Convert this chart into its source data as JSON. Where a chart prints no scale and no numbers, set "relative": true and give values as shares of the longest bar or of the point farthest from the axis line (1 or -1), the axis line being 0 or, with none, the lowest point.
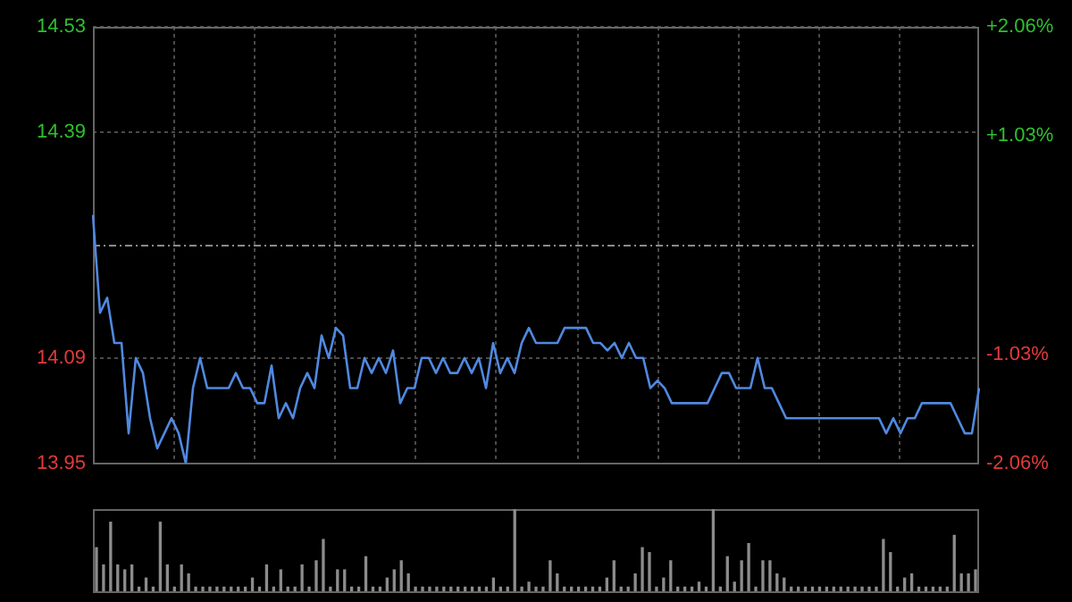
{
  "chart_data": [
    {
      "type": "line",
      "categories": [
        null,
        null,
        null,
        null,
        null,
        null,
        null,
        null,
        null,
        null,
        null,
        null,
        null,
        null,
        null,
        null,
        null,
        null,
        null,
        null,
        null,
        null,
        null,
        null,
        null,
        null,
        null,
        null,
        null,
        null,
        null,
        null,
        null,
        null,
        null,
        null,
        null,
        null,
        null,
        null,
        null,
        null,
        null,
        null,
        null,
        null,
        null,
        null,
        null,
        null,
        null,
        null,
        null,
        null,
        null,
        null,
        null,
        null,
        null,
        null,
        null,
        null,
        null,
        null,
        null,
        null,
        null,
        null,
        null,
        null,
        null,
        null,
        null,
        null,
        null,
        null,
        null,
        null,
        null,
        null,
        null,
        null,
        null,
        null,
        null,
        null,
        null,
        null,
        null,
        null,
        null,
        null,
        null,
        null,
        null,
        null,
        null,
        null,
        null,
        null,
        null,
        null,
        null,
        null,
        null,
        null,
        null,
        null,
        null,
        null,
        null,
        null,
        null,
        null,
        null,
        null,
        null,
        null,
        null,
        null,
        null,
        null,
        null,
        null,
        null
      ],
      "series": [
        {
          "color": "#5089e0",
          "values": [
            14.28,
            14.15,
            14.17,
            14.11,
            14.11,
            13.99,
            14.09,
            14.07,
            14.01,
            13.97,
            13.99,
            14.01,
            13.99,
            13.95,
            14.05,
            14.09,
            14.05,
            14.05,
            14.05,
            14.05,
            14.07,
            14.05,
            14.05,
            14.03,
            14.03,
            14.08,
            14.01,
            14.03,
            14.01,
            14.05,
            14.07,
            14.05,
            14.12,
            14.09,
            14.13,
            14.12,
            14.05,
            14.05,
            14.09,
            14.07,
            14.09,
            14.07,
            14.1,
            14.03,
            14.05,
            14.05,
            14.09,
            14.09,
            14.07,
            14.09,
            14.07,
            14.07,
            14.09,
            14.07,
            14.09,
            14.05,
            14.11,
            14.07,
            14.09,
            14.07,
            14.11,
            14.13,
            14.11,
            14.11,
            14.11,
            14.11,
            14.13,
            14.13,
            14.13,
            14.13,
            14.11,
            14.11,
            14.1,
            14.11,
            14.09,
            14.11,
            14.09,
            14.09,
            14.05,
            14.06,
            14.05,
            14.03,
            14.03,
            14.03,
            14.03,
            14.03,
            14.03,
            14.05,
            14.07,
            14.07,
            14.05,
            14.05,
            14.05,
            14.09,
            14.05,
            14.05,
            14.03,
            14.01,
            14.01,
            14.01,
            14.01,
            14.01,
            14.01,
            14.01,
            14.01,
            14.01,
            14.01,
            14.01,
            14.01,
            14.01,
            14.01,
            13.99,
            14.01,
            13.99,
            14.01,
            14.01,
            14.03,
            14.03,
            14.03,
            14.03,
            14.03,
            14.01,
            13.99,
            13.99,
            14.05
          ]
        }
      ],
      "ylim": [
        13.95,
        14.53
      ],
      "yticks": [
        13.95,
        14.09,
        14.39,
        14.53
      ],
      "y2lim": [
        -2.06,
        2.06
      ],
      "y2ticks": [
        {
          "value": -2.06,
          "label": "-2.06%"
        },
        {
          "value": -1.03,
          "label": "-1.03%"
        },
        {
          "value": 1.03,
          "label": "+1.03%"
        },
        {
          "value": 2.06,
          "label": "+2.06%"
        }
      ],
      "ref_lines": [
        {
          "axis": "y",
          "value": 14.24,
          "line_style": "dashed"
        }
      ],
      "grid": true,
      "marker": "none"
    },
    {
      "type": "bar",
      "relative": true,
      "color": "#8c8c8c",
      "categories": [
        null,
        null,
        null,
        null,
        null,
        null,
        null,
        null,
        null,
        null,
        null,
        null,
        null,
        null,
        null,
        null,
        null,
        null,
        null,
        null,
        null,
        null,
        null,
        null,
        null,
        null,
        null,
        null,
        null,
        null,
        null,
        null,
        null,
        null,
        null,
        null,
        null,
        null,
        null,
        null,
        null,
        null,
        null,
        null,
        null,
        null,
        null,
        null,
        null,
        null,
        null,
        null,
        null,
        null,
        null,
        null,
        null,
        null,
        null,
        null,
        null,
        null,
        null,
        null,
        null,
        null,
        null,
        null,
        null,
        null,
        null,
        null,
        null,
        null,
        null,
        null,
        null,
        null,
        null,
        null,
        null,
        null,
        null,
        null,
        null,
        null,
        null,
        null,
        null,
        null,
        null,
        null,
        null,
        null,
        null,
        null,
        null,
        null,
        null,
        null,
        null,
        null,
        null,
        null,
        null,
        null,
        null,
        null,
        null,
        null,
        null,
        null,
        null,
        null,
        null,
        null,
        null,
        null,
        null,
        null,
        null,
        null,
        null,
        null,
        null
      ],
      "values": [
        0.53,
        0.32,
        0.84,
        0.32,
        0.26,
        0.32,
        0.05,
        0.16,
        0.05,
        0.84,
        0.32,
        0.05,
        0.32,
        0.21,
        0.05,
        0.05,
        0.05,
        0.05,
        0.05,
        0.05,
        0.05,
        0.05,
        0.16,
        0.05,
        0.32,
        0.05,
        0.26,
        0.05,
        0.05,
        0.32,
        0.05,
        0.37,
        0.63,
        0.05,
        0.26,
        0.26,
        0.05,
        0.05,
        0.42,
        0.05,
        0.05,
        0.16,
        0.26,
        0.37,
        0.21,
        0.05,
        0.05,
        0.05,
        0.05,
        0.05,
        0.05,
        0.05,
        0.05,
        0.05,
        0.05,
        0.05,
        0.16,
        0.05,
        0.05,
        1,
        0.05,
        0.11,
        0.05,
        0.05,
        0.37,
        0.21,
        0.05,
        0.05,
        0.05,
        0.05,
        0.05,
        0.05,
        0.16,
        0.37,
        0.05,
        0.05,
        0.21,
        0.53,
        0.47,
        0.05,
        0.16,
        0.37,
        0.05,
        0.05,
        0.05,
        0.11,
        0.05,
        1,
        0.05,
        0.42,
        0.11,
        0.37,
        0.58,
        0.05,
        0.37,
        0.37,
        0.21,
        0.16,
        0.05,
        0.05,
        0.05,
        0.05,
        0.05,
        0.05,
        0.05,
        0.05,
        0.05,
        0.05,
        0.05,
        0.05,
        0.05,
        0.63,
        0.47,
        0.05,
        0.16,
        0.21,
        0.05,
        0.05,
        0.05,
        0.05,
        0.05,
        0.68,
        0.21,
        0.21,
        0.26
      ]
    }
  ]
}
